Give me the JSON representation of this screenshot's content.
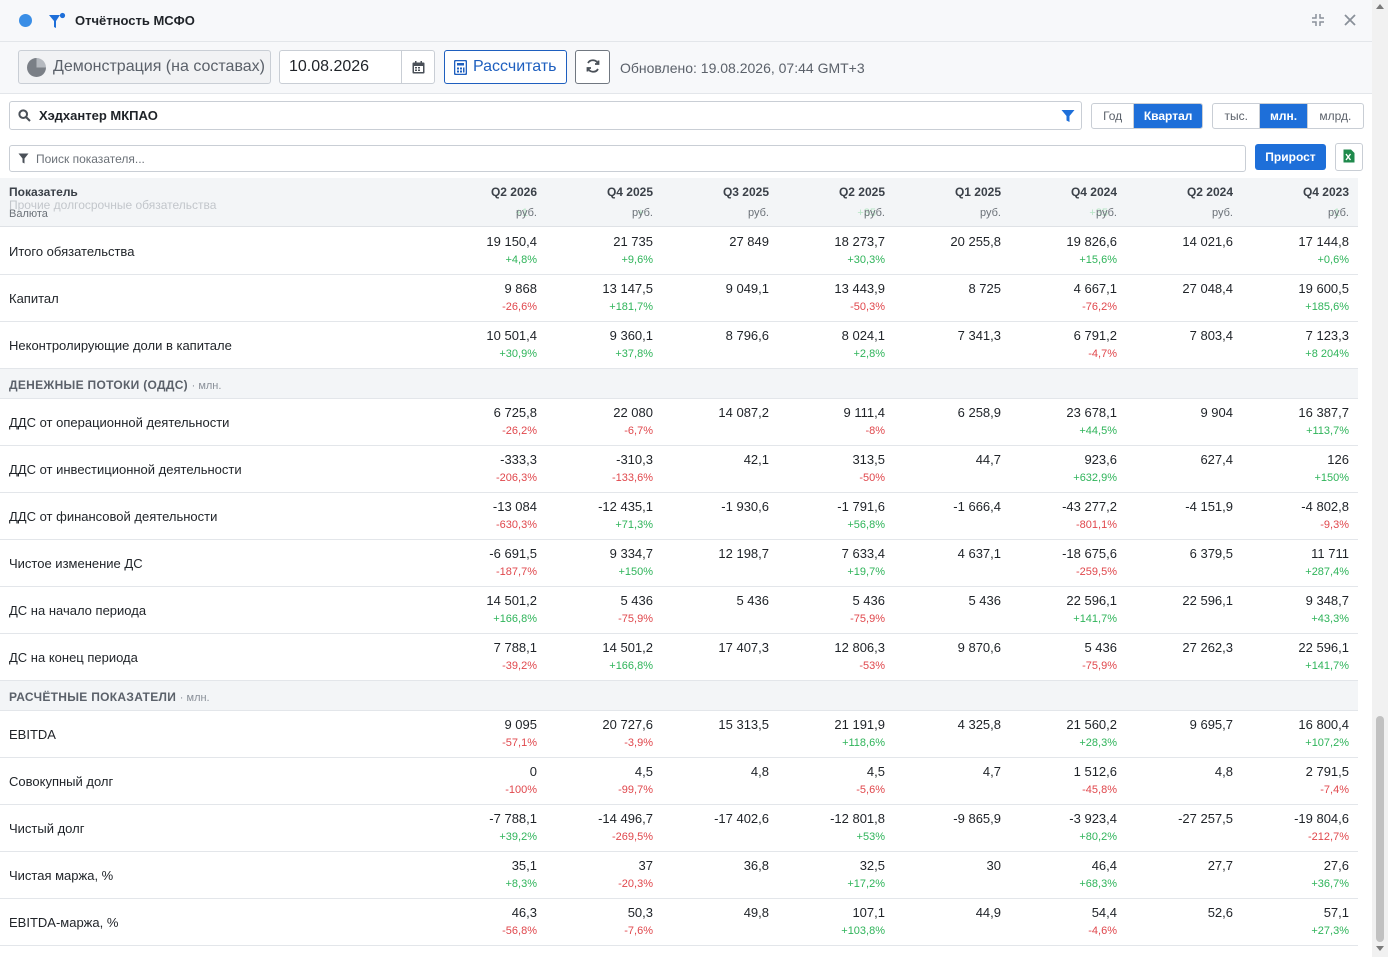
{
  "window": {
    "title": "Отчётность МСФО",
    "accent": "#1e6fd9"
  },
  "toolbar": {
    "demo_label": "Демонстрация (на составах)",
    "date_value": "10.08.2026",
    "calculate_label": "Рассчитать",
    "updated_text": "Обновлено: 19.08.2026, 07:44 GMT+3"
  },
  "company": {
    "name": "Хэдхантер МКПАО"
  },
  "period_toggle": [
    "Год",
    "Квартал"
  ],
  "period_active": "Квартал",
  "unit_toggle": [
    "тыс.",
    "млн.",
    "млрд."
  ],
  "unit_active": "млн.",
  "search": {
    "placeholder": "Поиск показателя..."
  },
  "growth_label": "Прирост",
  "table": {
    "header_label": "Показатель",
    "currency_label": "Валюта",
    "ghost_row_label": "Прочие долгосрочные обязательства",
    "columns": [
      {
        "q": "Q2 2026",
        "cur": "руб.",
        "ghost": "+1"
      },
      {
        "q": "Q4 2025",
        "cur": "руб.",
        "ghost": "+"
      },
      {
        "q": "Q3 2025",
        "cur": "руб.",
        "ghost": ""
      },
      {
        "q": "Q2 2025",
        "cur": "руб.",
        "ghost": "+35"
      },
      {
        "q": "Q1 2025",
        "cur": "руб.",
        "ghost": ""
      },
      {
        "q": "Q4 2024",
        "cur": "руб.",
        "ghost": "+35"
      },
      {
        "q": "Q2 2024",
        "cur": "руб.",
        "ghost": ""
      },
      {
        "q": "Q4 2023",
        "cur": "руб.",
        "ghost": "-1"
      }
    ],
    "blocks": [
      {
        "type": "rows",
        "rows": [
          {
            "label": "Итого обязательства",
            "cells": [
              [
                "19 150,4",
                "+4,8%"
              ],
              [
                "21 735",
                "+9,6%"
              ],
              [
                "27 849",
                ""
              ],
              [
                "18 273,7",
                "+30,3%"
              ],
              [
                "20 255,8",
                ""
              ],
              [
                "19 826,6",
                "+15,6%"
              ],
              [
                "14 021,6",
                ""
              ],
              [
                "17 144,8",
                "+0,6%"
              ]
            ]
          },
          {
            "label": "Капитал",
            "cells": [
              [
                "9 868",
                "-26,6%"
              ],
              [
                "13 147,5",
                "+181,7%"
              ],
              [
                "9 049,1",
                ""
              ],
              [
                "13 443,9",
                "-50,3%"
              ],
              [
                "8 725",
                ""
              ],
              [
                "4 667,1",
                "-76,2%"
              ],
              [
                "27 048,4",
                ""
              ],
              [
                "19 600,5",
                "+185,6%"
              ]
            ]
          },
          {
            "label": "Неконтролирующие доли в капитале",
            "cells": [
              [
                "10 501,4",
                "+30,9%"
              ],
              [
                "9 360,1",
                "+37,8%"
              ],
              [
                "8 796,6",
                ""
              ],
              [
                "8 024,1",
                "+2,8%"
              ],
              [
                "7 341,3",
                ""
              ],
              [
                "6 791,2",
                "-4,7%"
              ],
              [
                "7 803,4",
                ""
              ],
              [
                "7 123,3",
                "+8 204%"
              ]
            ]
          }
        ]
      },
      {
        "type": "section",
        "title": "ДЕНЕЖНЫЕ ПОТОКИ (ОДДС)",
        "unit": "· млн."
      },
      {
        "type": "rows",
        "rows": [
          {
            "label": "ДДС от операционной деятельности",
            "cells": [
              [
                "6 725,8",
                "-26,2%"
              ],
              [
                "22 080",
                "-6,7%"
              ],
              [
                "14 087,2",
                ""
              ],
              [
                "9 111,4",
                "-8%"
              ],
              [
                "6 258,9",
                ""
              ],
              [
                "23 678,1",
                "+44,5%"
              ],
              [
                "9 904",
                ""
              ],
              [
                "16 387,7",
                "+113,7%"
              ]
            ]
          },
          {
            "label": "ДДС от инвестиционной деятельности",
            "cells": [
              [
                "-333,3",
                "-206,3%"
              ],
              [
                "-310,3",
                "-133,6%"
              ],
              [
                "42,1",
                ""
              ],
              [
                "313,5",
                "-50%"
              ],
              [
                "44,7",
                ""
              ],
              [
                "923,6",
                "+632,9%"
              ],
              [
                "627,4",
                ""
              ],
              [
                "126",
                "+150%"
              ]
            ]
          },
          {
            "label": "ДДС от финансовой деятельности",
            "cells": [
              [
                "-13 084",
                "-630,3%"
              ],
              [
                "-12 435,1",
                "+71,3%"
              ],
              [
                "-1 930,6",
                ""
              ],
              [
                "-1 791,6",
                "+56,8%"
              ],
              [
                "-1 666,4",
                ""
              ],
              [
                "-43 277,2",
                "-801,1%"
              ],
              [
                "-4 151,9",
                ""
              ],
              [
                "-4 802,8",
                "-9,3%"
              ]
            ]
          },
          {
            "label": "Чистое изменение ДС",
            "cells": [
              [
                "-6 691,5",
                "-187,7%"
              ],
              [
                "9 334,7",
                "+150%"
              ],
              [
                "12 198,7",
                ""
              ],
              [
                "7 633,4",
                "+19,7%"
              ],
              [
                "4 637,1",
                ""
              ],
              [
                "-18 675,6",
                "-259,5%"
              ],
              [
                "6 379,5",
                ""
              ],
              [
                "11 711",
                "+287,4%"
              ]
            ]
          },
          {
            "label": "ДС на начало периода",
            "cells": [
              [
                "14 501,2",
                "+166,8%"
              ],
              [
                "5 436",
                "-75,9%"
              ],
              [
                "5 436",
                ""
              ],
              [
                "5 436",
                "-75,9%"
              ],
              [
                "5 436",
                ""
              ],
              [
                "22 596,1",
                "+141,7%"
              ],
              [
                "22 596,1",
                ""
              ],
              [
                "9 348,7",
                "+43,3%"
              ]
            ]
          },
          {
            "label": "ДС на конец периода",
            "cells": [
              [
                "7 788,1",
                "-39,2%"
              ],
              [
                "14 501,2",
                "+166,8%"
              ],
              [
                "17 407,3",
                ""
              ],
              [
                "12 806,3",
                "-53%"
              ],
              [
                "9 870,6",
                ""
              ],
              [
                "5 436",
                "-75,9%"
              ],
              [
                "27 262,3",
                ""
              ],
              [
                "22 596,1",
                "+141,7%"
              ]
            ]
          }
        ]
      },
      {
        "type": "section",
        "title": "РАСЧЁТНЫЕ ПОКАЗАТЕЛИ",
        "unit": "· млн."
      },
      {
        "type": "rows",
        "rows": [
          {
            "label": "EBITDA",
            "cells": [
              [
                "9 095",
                "-57,1%"
              ],
              [
                "20 727,6",
                "-3,9%"
              ],
              [
                "15 313,5",
                ""
              ],
              [
                "21 191,9",
                "+118,6%"
              ],
              [
                "4 325,8",
                ""
              ],
              [
                "21 560,2",
                "+28,3%"
              ],
              [
                "9 695,7",
                ""
              ],
              [
                "16 800,4",
                "+107,2%"
              ]
            ]
          },
          {
            "label": "Совокупный долг",
            "cells": [
              [
                "0",
                "-100%"
              ],
              [
                "4,5",
                "-99,7%"
              ],
              [
                "4,8",
                ""
              ],
              [
                "4,5",
                "-5,6%"
              ],
              [
                "4,7",
                ""
              ],
              [
                "1 512,6",
                "-45,8%"
              ],
              [
                "4,8",
                ""
              ],
              [
                "2 791,5",
                "-7,4%"
              ]
            ]
          },
          {
            "label": "Чистый долг",
            "cells": [
              [
                "-7 788,1",
                "+39,2%"
              ],
              [
                "-14 496,7",
                "-269,5%"
              ],
              [
                "-17 402,6",
                ""
              ],
              [
                "-12 801,8",
                "+53%"
              ],
              [
                "-9 865,9",
                ""
              ],
              [
                "-3 923,4",
                "+80,2%"
              ],
              [
                "-27 257,5",
                ""
              ],
              [
                "-19 804,6",
                "-212,7%"
              ]
            ]
          },
          {
            "label": "Чистая маржа, %",
            "cells": [
              [
                "35,1",
                "+8,3%"
              ],
              [
                "37",
                "-20,3%"
              ],
              [
                "36,8",
                ""
              ],
              [
                "32,5",
                "+17,2%"
              ],
              [
                "30",
                ""
              ],
              [
                "46,4",
                "+68,3%"
              ],
              [
                "27,7",
                ""
              ],
              [
                "27,6",
                "+36,7%"
              ]
            ]
          },
          {
            "label": "EBITDA-маржа, %",
            "cells": [
              [
                "46,3",
                "-56,8%"
              ],
              [
                "50,3",
                "-7,6%"
              ],
              [
                "49,8",
                ""
              ],
              [
                "107,1",
                "+103,8%"
              ],
              [
                "44,9",
                ""
              ],
              [
                "54,4",
                "-4,6%"
              ],
              [
                "52,6",
                ""
              ],
              [
                "57,1",
                "+27,3%"
              ]
            ]
          }
        ]
      }
    ]
  }
}
